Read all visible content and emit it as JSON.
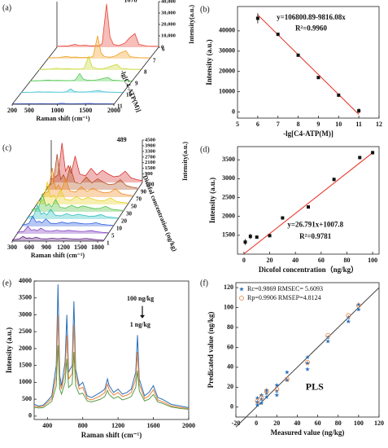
{
  "chart_data": [
    {
      "type": "waterfall",
      "label": "(a)",
      "xlabel": "Raman shift (cm⁻¹)",
      "ylabel": "Intensity(a.u.)",
      "depth_label": "-lg[C4-ATP(M)]",
      "x": [
        200,
        400,
        520,
        600,
        700,
        800,
        950,
        1000,
        1078,
        1140,
        1200,
        1300,
        1400,
        1480,
        1580,
        1650,
        1800,
        2000
      ],
      "xlim": [
        200,
        2000
      ],
      "xticks": [
        200,
        500,
        1000,
        1500,
        2000
      ],
      "ylim": [
        0,
        40000
      ],
      "yticks": [
        0,
        {
          "value": 10000,
          "label": "10,000"
        },
        {
          "value": 20000,
          "label": "20,000"
        },
        {
          "value": 30000,
          "label": "30,000"
        },
        {
          "value": 40000,
          "label": "40,000"
        }
      ],
      "annotations": [
        "1078"
      ],
      "series": [
        {
          "name": "6",
          "color": "#e8463a",
          "values": [
            800,
            1200,
            2500,
            1500,
            1800,
            1200,
            1500,
            3000,
            38000,
            9000,
            2500,
            1500,
            3500,
            8000,
            12000,
            2500,
            1000,
            800
          ]
        },
        {
          "name": "7",
          "color": "#f0a020",
          "values": [
            700,
            1000,
            2000,
            1200,
            1400,
            1000,
            1200,
            2200,
            20000,
            5000,
            1800,
            1200,
            2500,
            5000,
            7000,
            1800,
            900,
            700
          ]
        },
        {
          "name": "8",
          "color": "#c8d830",
          "values": [
            600,
            900,
            1600,
            1000,
            1200,
            900,
            1000,
            1800,
            12000,
            3000,
            1500,
            1000,
            2000,
            3500,
            5000,
            1500,
            800,
            600
          ]
        },
        {
          "name": "9",
          "color": "#50c850",
          "values": [
            500,
            800,
            1200,
            900,
            1000,
            800,
            900,
            1400,
            7000,
            2200,
            1200,
            900,
            1500,
            2500,
            3500,
            1200,
            700,
            500
          ]
        },
        {
          "name": "10",
          "color": "#40c0d0",
          "values": [
            400,
            600,
            900,
            700,
            800,
            600,
            700,
            1000,
            3500,
            1200,
            900,
            700,
            1000,
            1500,
            2000,
            900,
            600,
            400
          ]
        },
        {
          "name": "11",
          "color": "#3050e0",
          "values": [
            300,
            400,
            500,
            450,
            500,
            400,
            450,
            500,
            900,
            600,
            500,
            450,
            550,
            600,
            700,
            500,
            400,
            300
          ]
        }
      ]
    },
    {
      "type": "scatter",
      "label": "(b)",
      "xlabel": "-lg[C4-ATP(M)]",
      "ylabel": "Intensity (a.u.)",
      "xlim": [
        5,
        12
      ],
      "xticks": [
        5,
        6,
        7,
        8,
        9,
        10,
        11,
        12
      ],
      "ylim": [
        -3000,
        52000
      ],
      "yticks": [
        0,
        10000,
        20000,
        30000,
        40000
      ],
      "annotations": [
        "y=106800.89-9816.08x",
        "R²=0.9960"
      ],
      "fit": {
        "color": "#e8281e",
        "x": [
          6,
          11
        ],
        "values": [
          47904,
          -1176
        ]
      },
      "series": [
        {
          "color": "#111111",
          "marker": "square",
          "x": [
            6,
            7,
            8,
            9,
            10,
            11
          ],
          "values": [
            46200,
            38300,
            28000,
            17000,
            8300,
            600
          ],
          "errors": [
            2500,
            800,
            600,
            500,
            500,
            1200
          ]
        }
      ]
    },
    {
      "type": "waterfall",
      "label": "(c)",
      "xlabel": "Raman shift (cm⁻¹)",
      "ylabel": "Intensity(a.u.)",
      "depth_label": "Dicofol concentration (ng/kg)",
      "x": [
        300,
        420,
        489,
        550,
        600,
        650,
        720,
        800,
        900,
        1000,
        1100,
        1200,
        1300,
        1400,
        1500,
        1600,
        1700,
        1800,
        1900
      ],
      "xlim": [
        300,
        1900
      ],
      "xticks": [
        300,
        600,
        900,
        1200,
        1500,
        1800
      ],
      "ylim": [
        0,
        4500
      ],
      "yticks": [
        900,
        1500,
        2100,
        2700,
        3300,
        3900,
        4500
      ],
      "annotations": [
        "489"
      ],
      "series": [
        {
          "name": "100",
          "color": "#d83030",
          "values": [
            300,
            800,
            4200,
            1200,
            1800,
            1000,
            2800,
            900,
            700,
            1500,
            800,
            1300,
            900,
            600,
            700,
            1200,
            500,
            300,
            200
          ]
        },
        {
          "name": "90",
          "color": "#b05020",
          "values": [
            280,
            720,
            3800,
            1100,
            1600,
            900,
            2500,
            800,
            650,
            1350,
            720,
            1170,
            800,
            540,
            630,
            1080,
            450,
            280,
            180
          ]
        },
        {
          "name": "70",
          "color": "#f08a20",
          "values": [
            250,
            600,
            3100,
            900,
            1300,
            750,
            2000,
            650,
            550,
            1100,
            600,
            950,
            650,
            450,
            520,
            880,
            380,
            250,
            160
          ]
        },
        {
          "name": "50",
          "color": "#e8d020",
          "values": [
            220,
            500,
            2400,
            750,
            1000,
            620,
            1600,
            550,
            450,
            850,
            500,
            750,
            550,
            380,
            430,
            700,
            320,
            220,
            150
          ]
        },
        {
          "name": "30",
          "color": "#50c040",
          "values": [
            200,
            420,
            1900,
            620,
            850,
            520,
            1300,
            460,
            400,
            700,
            420,
            620,
            460,
            330,
            370,
            580,
            280,
            200,
            140
          ]
        },
        {
          "name": "20",
          "color": "#30c0c0",
          "values": [
            180,
            360,
            1500,
            520,
            700,
            450,
            1050,
            400,
            350,
            580,
            370,
            520,
            400,
            300,
            330,
            480,
            250,
            180,
            130
          ]
        },
        {
          "name": "10",
          "color": "#3060e0",
          "values": [
            160,
            300,
            1100,
            430,
            560,
            380,
            800,
            340,
            300,
            460,
            320,
            430,
            340,
            270,
            290,
            400,
            230,
            160,
            120
          ]
        },
        {
          "name": "5",
          "color": "#8040c0",
          "values": [
            150,
            260,
            800,
            360,
            450,
            320,
            600,
            300,
            270,
            380,
            280,
            360,
            300,
            250,
            260,
            340,
            210,
            150,
            110
          ]
        },
        {
          "name": "1",
          "color": "#602080",
          "values": [
            140,
            220,
            500,
            300,
            350,
            270,
            420,
            260,
            240,
            300,
            250,
            300,
            260,
            230,
            240,
            280,
            200,
            140,
            100
          ]
        }
      ]
    },
    {
      "type": "scatter",
      "label": "(d)",
      "xlabel": "Dicofol concentration（ng/kg）",
      "ylabel": "Intensity (a.u.)",
      "xlim": [
        -5,
        105
      ],
      "xticks": [
        0,
        20,
        40,
        60,
        80,
        100
      ],
      "ylim": [
        1000,
        3850
      ],
      "yticks": [
        1500,
        2000,
        2500,
        3000,
        3500
      ],
      "annotations": [
        "y=26.791x+1007.8",
        "R²=0.9781"
      ],
      "fit": {
        "color": "#e8281e",
        "x": [
          0,
          100
        ],
        "values": [
          1007.8,
          3686.9
        ]
      },
      "series": [
        {
          "color": "#111111",
          "marker": "square",
          "x": [
            1,
            5,
            10,
            20,
            30,
            50,
            70,
            90,
            100
          ],
          "values": [
            1320,
            1470,
            1450,
            1490,
            1960,
            2250,
            2980,
            3560,
            3690
          ],
          "errors": [
            80,
            70,
            40,
            30,
            30,
            40,
            50,
            40,
            50
          ]
        }
      ]
    },
    {
      "type": "line",
      "label": "(e)",
      "xlabel": "Raman shift (cm⁻¹)",
      "ylabel": "Intensity (a.u.)",
      "xlim": [
        250,
        2000
      ],
      "xticks": [
        400,
        800,
        1200,
        1600,
        2000
      ],
      "ylim": [
        -100,
        4000
      ],
      "yticks": [
        0,
        500,
        1000,
        1500,
        2000,
        2500,
        3000,
        3500,
        4000
      ],
      "annotations": [
        "100 ng/kg",
        "1 ng/kg"
      ],
      "x": [
        250,
        300,
        350,
        400,
        450,
        500,
        520,
        540,
        560,
        600,
        620,
        640,
        680,
        700,
        720,
        760,
        800,
        850,
        900,
        1000,
        1050,
        1080,
        1100,
        1150,
        1200,
        1250,
        1300,
        1350,
        1400,
        1420,
        1440,
        1500,
        1550,
        1600,
        1650,
        1700,
        1800,
        1900,
        2000
      ],
      "series": [
        {
          "color": "#2a6fb8",
          "values": [
            350,
            300,
            320,
            450,
            600,
            1500,
            3900,
            1200,
            900,
            1600,
            3000,
            1300,
            1500,
            3400,
            1400,
            900,
            1000,
            600,
            550,
            700,
            800,
            1100,
            900,
            700,
            800,
            650,
            700,
            800,
            1300,
            2400,
            1100,
            600,
            700,
            900,
            550,
            500,
            350,
            300,
            250
          ]
        },
        {
          "color": "#e8803a",
          "values": [
            300,
            270,
            290,
            400,
            520,
            1200,
            3000,
            1000,
            800,
            1300,
            2400,
            1100,
            1250,
            2700,
            1200,
            800,
            850,
            520,
            480,
            600,
            700,
            950,
            780,
            620,
            700,
            580,
            620,
            700,
            1100,
            1900,
            950,
            520,
            600,
            780,
            480,
            430,
            300,
            260,
            220
          ]
        },
        {
          "color": "#5a9a48",
          "values": [
            260,
            240,
            250,
            340,
            440,
            900,
            2100,
            800,
            650,
            1000,
            1700,
            850,
            950,
            1900,
            900,
            650,
            680,
            450,
            420,
            500,
            580,
            760,
            640,
            520,
            580,
            480,
            520,
            580,
            850,
            1350,
            750,
            450,
            500,
            640,
            420,
            380,
            270,
            230,
            200
          ]
        }
      ]
    },
    {
      "type": "scatter",
      "label": "(f)",
      "xlabel": "Measured value (ng/kg)",
      "ylabel": "Predicated value (ng/kg)",
      "xlim": [
        -20,
        120
      ],
      "xticks": [
        -20,
        0,
        20,
        40,
        60,
        80,
        100,
        120
      ],
      "ylim": [
        -10,
        125
      ],
      "yticks": [
        0,
        20,
        40,
        60,
        80,
        100,
        120
      ],
      "annotations": [
        "PLS"
      ],
      "legend": "top-left",
      "fit": {
        "color": "#444444",
        "x": [
          -20,
          120
        ],
        "values": [
          -20,
          120
        ]
      },
      "series": [
        {
          "name": "Rc=0.9869  RMSEC= 5.6093",
          "color": "#2a6fb8",
          "marker": "star",
          "x": [
            1,
            1,
            1,
            5,
            5,
            5,
            10,
            10,
            10,
            20,
            20,
            20,
            30,
            30,
            50,
            50,
            50,
            70,
            70,
            90,
            90,
            100,
            100
          ],
          "values": [
            2,
            5,
            9,
            4,
            8,
            12,
            10,
            14,
            17,
            12,
            16,
            22,
            27,
            35,
            38,
            44,
            50,
            66,
            70,
            86,
            90,
            98,
            103
          ]
        },
        {
          "name": "Rp=0.9906  RMSEP=4.8124",
          "color": "#e8803a",
          "marker": "circle",
          "x": [
            1,
            5,
            10,
            20,
            30,
            50,
            70,
            90,
            100
          ],
          "values": [
            6,
            10,
            16,
            18,
            28,
            45,
            72,
            92,
            102
          ]
        }
      ]
    }
  ]
}
